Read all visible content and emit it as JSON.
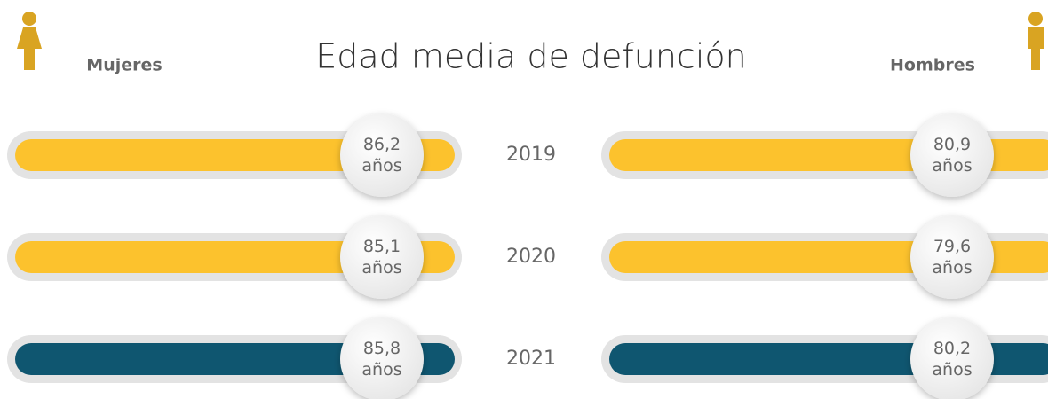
{
  "chart_data": {
    "type": "bar",
    "title": "Edad media de defunción",
    "categories": [
      "2019",
      "2020",
      "2021"
    ],
    "bar_colors": [
      "#fcc22d",
      "#fcc22d",
      "#0f5670"
    ],
    "series": [
      {
        "name": "Mujeres",
        "color": "#fcc22d",
        "values": [
          86.2,
          85.1,
          85.8
        ],
        "value_labels": [
          "86,2 años",
          "85,1 años",
          "85,8 años"
        ]
      },
      {
        "name": "Hombres",
        "color": "#fcc22d",
        "values": [
          80.9,
          79.6,
          80.2
        ],
        "value_labels": [
          "80,9 años",
          "79,6 años",
          "80,2 años"
        ]
      }
    ]
  }
}
